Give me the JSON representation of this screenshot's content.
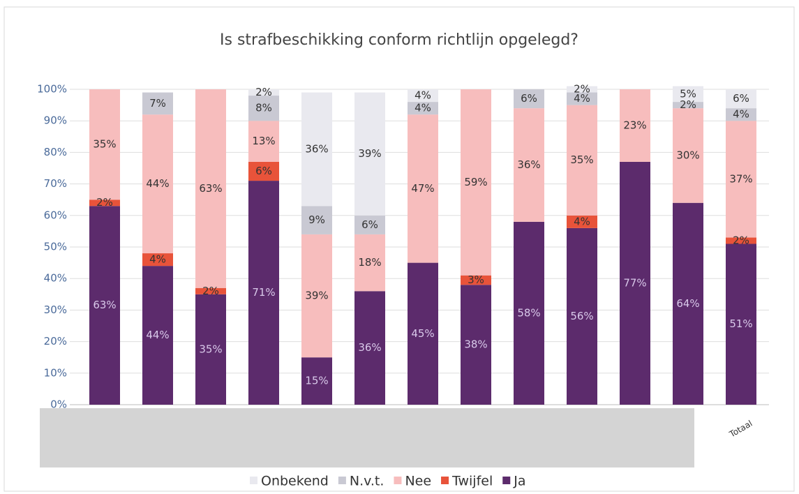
{
  "chart_data": {
    "type": "stacked_bar",
    "title": "Is strafbeschikking conform richtlijn opgelegd?",
    "categories": [
      null,
      null,
      null,
      null,
      null,
      null,
      null,
      null,
      null,
      null,
      null,
      null,
      "Totaal"
    ],
    "series": [
      {
        "name": "Ja",
        "color": "#5c2b6c",
        "values": [
          63,
          44,
          35,
          71,
          15,
          36,
          45,
          38,
          58,
          56,
          77,
          64,
          51
        ],
        "value_labels": [
          "63%",
          "44%",
          "35%",
          "71%",
          "15%",
          "36%",
          "45%",
          "38%",
          "58%",
          "56%",
          "77%",
          "64%",
          "51%"
        ]
      },
      {
        "name": "Twijfel",
        "color": "#e8533a",
        "values": [
          2,
          4,
          2,
          6,
          0,
          0,
          0,
          3,
          0,
          4,
          0,
          0,
          2
        ],
        "value_labels": [
          "2%",
          "4%",
          "2%",
          "6%",
          null,
          null,
          null,
          "3%",
          null,
          "4%",
          null,
          null,
          "2%"
        ]
      },
      {
        "name": "Nee",
        "color": "#f7bdbd",
        "values": [
          35,
          44,
          63,
          13,
          39,
          18,
          47,
          59,
          36,
          35,
          23,
          30,
          37
        ],
        "value_labels": [
          "35%",
          "44%",
          "63%",
          "13%",
          "39%",
          "18%",
          "47%",
          "59%",
          "36%",
          "35%",
          "23%",
          "30%",
          "37%"
        ]
      },
      {
        "name": "N.v.t.",
        "color": "#c9c9d3",
        "values": [
          0,
          7,
          0,
          8,
          9,
          6,
          4,
          0,
          6,
          4,
          0,
          2,
          4
        ],
        "value_labels": [
          null,
          "7%",
          null,
          "8%",
          "9%",
          "6%",
          "4%",
          null,
          "6%",
          "4%",
          null,
          "2%",
          "4%"
        ]
      },
      {
        "name": "Onbekend",
        "color": "#e9e9ef",
        "values": [
          0,
          0,
          0,
          2,
          36,
          39,
          4,
          0,
          0,
          2,
          0,
          5,
          6
        ],
        "value_labels": [
          null,
          null,
          null,
          "2%",
          "36%",
          "39%",
          "4%",
          null,
          null,
          "2%",
          null,
          "5%",
          "6%"
        ]
      }
    ],
    "ylim": [
      0,
      100
    ],
    "yticks": [
      {
        "value": 0,
        "label": "0%"
      },
      {
        "value": 10,
        "label": "10%"
      },
      {
        "value": 20,
        "label": "20%"
      },
      {
        "value": 30,
        "label": "30%"
      },
      {
        "value": 40,
        "label": "40%"
      },
      {
        "value": 50,
        "label": "50%"
      },
      {
        "value": 60,
        "label": "60%"
      },
      {
        "value": 70,
        "label": "70%"
      },
      {
        "value": 80,
        "label": "80%"
      },
      {
        "value": 90,
        "label": "90%"
      },
      {
        "value": 100,
        "label": "100%"
      }
    ],
    "grid": true,
    "legend": "bottom"
  }
}
